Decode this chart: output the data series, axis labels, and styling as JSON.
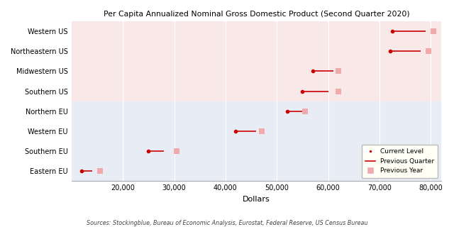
{
  "title": "Per Capita Annualized Nominal Gross Domestic Product (Second Quarter 2020)",
  "xlabel": "Dollars",
  "source": "Sources: Stockingblue, Bureau of Economic Analysis, Eurostat, Federal Reserve, US Census Bureau",
  "categories": [
    "Eastern EU",
    "Southern EU",
    "Western EU",
    "Northern EU",
    "Southern US",
    "Midwestern US",
    "Northeastern US",
    "Western US"
  ],
  "current_level": [
    12000,
    25000,
    42000,
    52000,
    55000,
    57000,
    72000,
    72500
  ],
  "previous_quarter": [
    14000,
    28000,
    46000,
    55000,
    60000,
    61000,
    78000,
    79000
  ],
  "previous_year": [
    15500,
    30500,
    47000,
    55500,
    62000,
    62000,
    79500,
    80500
  ],
  "us_bg_color": "#f9e8e8",
  "eu_bg_color": "#e8ecf5",
  "dot_color": "#cc0000",
  "line_color": "#cc0000",
  "prev_year_color": "#f0aaaa",
  "xlim": [
    10000,
    82000
  ],
  "xticks": [
    20000,
    30000,
    40000,
    50000,
    60000,
    70000,
    80000
  ],
  "figsize": [
    6.4,
    3.2
  ],
  "dpi": 100
}
